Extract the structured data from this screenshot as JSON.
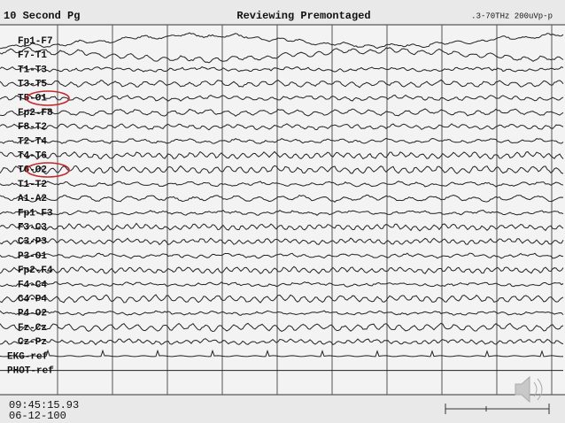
{
  "header": {
    "left": "10 Second Pg",
    "center": "Reviewing Premontaged",
    "right": ".3-70THz 200uVp-p"
  },
  "channels": [
    "Fp1-F7",
    "F7-T1",
    "T1-T3",
    "T3-T5",
    "T5-O1",
    "Fp2-F8",
    "F8-T2",
    "T2-T4",
    "T4-T6",
    "T6-O2",
    "T1-T2",
    "A1-A2",
    "Fp1-F3",
    "F3-C3",
    "C3-P3",
    "P3-O1",
    "Fp2-F4",
    "F4-C4",
    "C4-P4",
    "P4-O2",
    "Fz-Cz",
    "Cz-Pz",
    "EKG-ref",
    "PHOT-ref"
  ],
  "footer": {
    "time": "09:45:15.93",
    "date": "06-12-100"
  }
}
